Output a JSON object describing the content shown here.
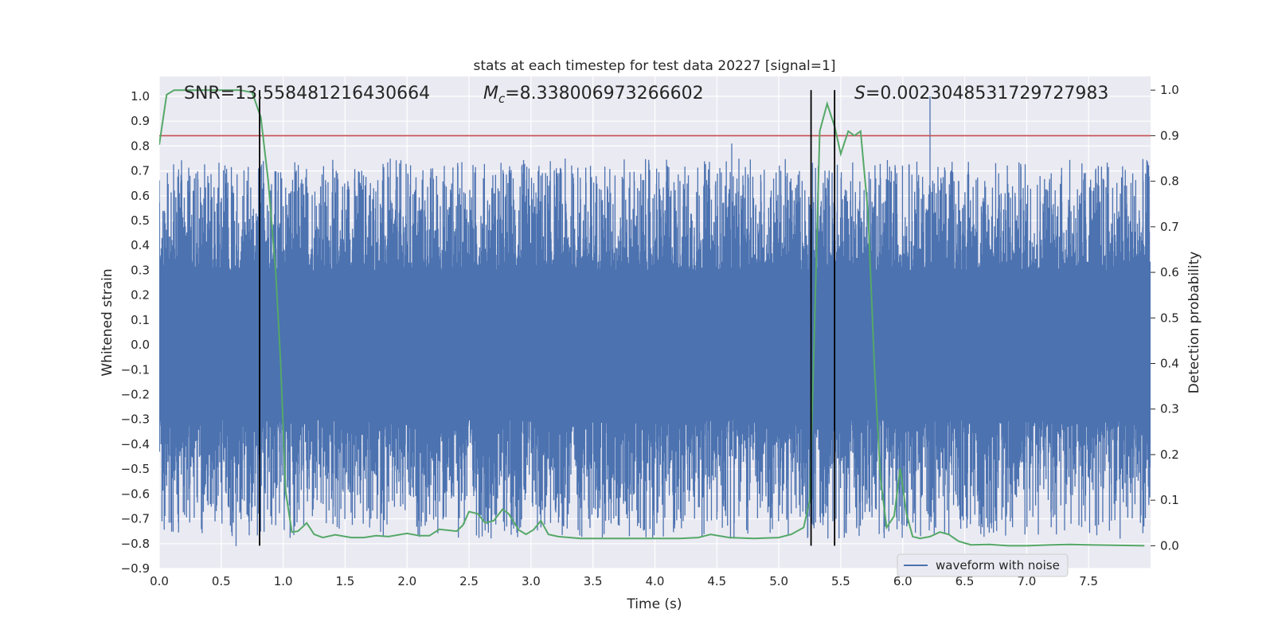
{
  "chart_data": {
    "type": "line",
    "title": "stats at each timestep for test data 20227 [signal=1]",
    "xlabel": "Time (s)",
    "ylabel_left": "Whitened strain",
    "ylabel_right": "Detection probability",
    "xlim": [
      0.0,
      8.0
    ],
    "ylim_left": [
      -0.9,
      1.08
    ],
    "ylim_right": [
      -0.05,
      1.03
    ],
    "x_ticks": [
      "0.0",
      "0.5",
      "1.0",
      "1.5",
      "2.0",
      "2.5",
      "3.0",
      "3.5",
      "4.0",
      "4.5",
      "5.0",
      "5.5",
      "6.0",
      "6.5",
      "7.0",
      "7.5"
    ],
    "y_ticks_left": [
      "1.0",
      "0.9",
      "0.8",
      "0.7",
      "0.6",
      "0.5",
      "0.4",
      "0.3",
      "0.2",
      "0.1",
      "0.0",
      "−0.1",
      "−0.2",
      "−0.3",
      "−0.4",
      "−0.5",
      "−0.6",
      "−0.7",
      "−0.8",
      "−0.9"
    ],
    "y_ticks_right": [
      "1.0",
      "0.9",
      "0.8",
      "0.7",
      "0.6",
      "0.5",
      "0.4",
      "0.3",
      "0.2",
      "0.1",
      "0.0"
    ],
    "grid": true,
    "legend": {
      "placement": "lower-center-right",
      "entries": [
        {
          "label": "waveform with noise",
          "color": "#4c72b0"
        }
      ]
    },
    "annotations": {
      "snr": "SNR=13.558481216430664",
      "mc_symbol": "M",
      "mc_sub": "c",
      "mc_value": "=8.338006973266602",
      "s_symbol": "S",
      "s_value": "=0.0023048531729727983"
    },
    "waveform": {
      "name": "waveform with noise",
      "color": "#4c72b0",
      "core_amplitude": 0.3,
      "max_peak": 1.0,
      "max_peak_time": 6.22,
      "min_trough": -0.81
    },
    "threshold_line": {
      "value": 0.9,
      "color": "#c44e52"
    },
    "vertical_lines": [
      0.81,
      5.26,
      5.45
    ],
    "probability_series": {
      "color": "#55a868",
      "points": [
        [
          0.0,
          0.88
        ],
        [
          0.06,
          0.99
        ],
        [
          0.12,
          1.0
        ],
        [
          0.3,
          1.0
        ],
        [
          0.5,
          1.0
        ],
        [
          0.65,
          1.0
        ],
        [
          0.75,
          0.995
        ],
        [
          0.82,
          0.94
        ],
        [
          0.88,
          0.8
        ],
        [
          0.94,
          0.6
        ],
        [
          0.98,
          0.4
        ],
        [
          1.02,
          0.12
        ],
        [
          1.07,
          0.03
        ],
        [
          1.12,
          0.032
        ],
        [
          1.19,
          0.05
        ],
        [
          1.25,
          0.025
        ],
        [
          1.32,
          0.018
        ],
        [
          1.42,
          0.024
        ],
        [
          1.55,
          0.018
        ],
        [
          1.65,
          0.018
        ],
        [
          1.75,
          0.022
        ],
        [
          1.85,
          0.02
        ],
        [
          2.0,
          0.027
        ],
        [
          2.1,
          0.022
        ],
        [
          2.18,
          0.022
        ],
        [
          2.26,
          0.036
        ],
        [
          2.4,
          0.032
        ],
        [
          2.45,
          0.045
        ],
        [
          2.5,
          0.075
        ],
        [
          2.57,
          0.07
        ],
        [
          2.63,
          0.05
        ],
        [
          2.7,
          0.055
        ],
        [
          2.77,
          0.08
        ],
        [
          2.82,
          0.07
        ],
        [
          2.9,
          0.035
        ],
        [
          2.96,
          0.025
        ],
        [
          3.02,
          0.035
        ],
        [
          3.08,
          0.055
        ],
        [
          3.14,
          0.025
        ],
        [
          3.22,
          0.02
        ],
        [
          3.4,
          0.016
        ],
        [
          3.6,
          0.016
        ],
        [
          3.8,
          0.016
        ],
        [
          4.0,
          0.016
        ],
        [
          4.2,
          0.016
        ],
        [
          4.35,
          0.018
        ],
        [
          4.45,
          0.025
        ],
        [
          4.6,
          0.018
        ],
        [
          4.8,
          0.016
        ],
        [
          5.0,
          0.018
        ],
        [
          5.1,
          0.025
        ],
        [
          5.2,
          0.04
        ],
        [
          5.25,
          0.1
        ],
        [
          5.28,
          0.4
        ],
        [
          5.33,
          0.91
        ],
        [
          5.39,
          0.97
        ],
        [
          5.45,
          0.92
        ],
        [
          5.5,
          0.86
        ],
        [
          5.56,
          0.91
        ],
        [
          5.61,
          0.9
        ],
        [
          5.66,
          0.91
        ],
        [
          5.72,
          0.73
        ],
        [
          5.77,
          0.4
        ],
        [
          5.82,
          0.15
        ],
        [
          5.87,
          0.04
        ],
        [
          5.93,
          0.065
        ],
        [
          5.98,
          0.17
        ],
        [
          6.03,
          0.07
        ],
        [
          6.08,
          0.02
        ],
        [
          6.14,
          0.016
        ],
        [
          6.22,
          0.02
        ],
        [
          6.3,
          0.03
        ],
        [
          6.37,
          0.025
        ],
        [
          6.45,
          0.01
        ],
        [
          6.55,
          0.002
        ],
        [
          6.7,
          0.003
        ],
        [
          6.85,
          0.0
        ],
        [
          7.0,
          0.0
        ],
        [
          7.2,
          0.002
        ],
        [
          7.35,
          0.003
        ],
        [
          7.5,
          0.002
        ],
        [
          7.7,
          0.001
        ],
        [
          7.95,
          0.0
        ]
      ]
    }
  }
}
